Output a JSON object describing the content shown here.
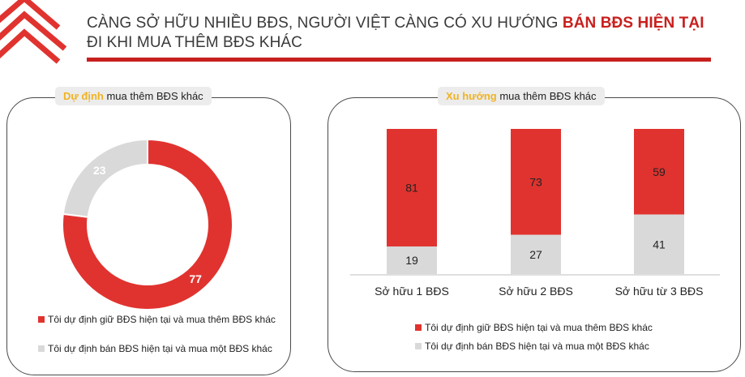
{
  "header": {
    "title_line1_part1": "CÀNG SỞ HỮU NHIỀU BĐS, NGƯỜI VIỆT CÀNG CÓ XU HƯỚNG ",
    "title_line1_highlight": "BÁN BĐS HIỆN TẠI",
    "title_line2": "ĐI KHI MUA THÊM BĐS KHÁC"
  },
  "colors": {
    "red": "#e0332f",
    "grey": "#d9d9d9",
    "accent_yellow": "#f0b323",
    "title_red": "#c8201e"
  },
  "left_panel": {
    "header_highlight": "Dự định",
    "header_rest": " mua thêm BĐS khác"
  },
  "right_panel": {
    "header_highlight": "Xu hướng",
    "header_rest": " mua thêm BĐS khác"
  },
  "chart_data": [
    {
      "type": "pie",
      "variant": "donut",
      "title": "Dự định mua thêm BĐS khác",
      "slices": [
        {
          "label": "Tôi dự định giữ BĐS hiện tại và mua thêm BĐS khác",
          "value": 77,
          "color": "#e0332f"
        },
        {
          "label": "Tôi dự định bán BĐS hiện tại và mua một BĐS khác",
          "value": 23,
          "color": "#d9d9d9"
        }
      ],
      "legend_position": "bottom"
    },
    {
      "type": "bar",
      "variant": "stacked-100",
      "title": "Xu hướng mua thêm BĐS khác",
      "categories": [
        "Sở hữu 1 BĐS",
        "Sở hữu 2 BĐS",
        "Sở hữu từ 3 BĐS"
      ],
      "series": [
        {
          "name": "Tôi dự định giữ BĐS hiện tại và mua thêm BĐS khác",
          "values": [
            81,
            73,
            59
          ],
          "color": "#e0332f"
        },
        {
          "name": "Tôi dự định bán BĐS hiện tại và mua một BĐS khác",
          "values": [
            19,
            27,
            41
          ],
          "color": "#d9d9d9"
        }
      ],
      "ylim": [
        0,
        100
      ],
      "grid": false,
      "legend_position": "bottom"
    }
  ]
}
